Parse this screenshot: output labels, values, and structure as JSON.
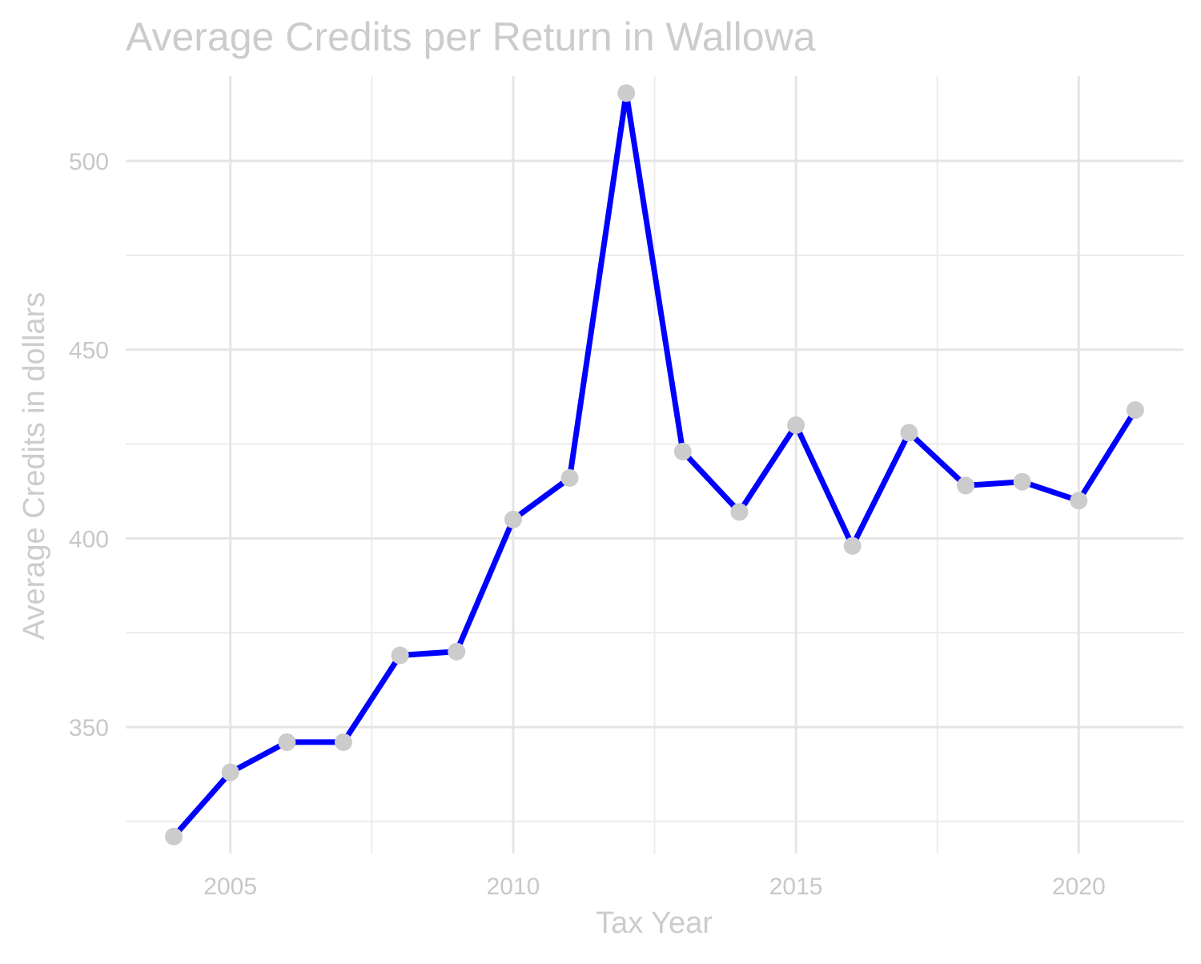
{
  "chart_data": {
    "type": "line",
    "title": "Average Credits per Return in Wallowa",
    "xlabel": "Tax Year",
    "ylabel": "Average Credits in dollars",
    "x": [
      2004,
      2005,
      2006,
      2007,
      2008,
      2009,
      2010,
      2011,
      2012,
      2013,
      2014,
      2015,
      2016,
      2017,
      2018,
      2019,
      2020,
      2021
    ],
    "series": [
      {
        "values": [
          321,
          338,
          346,
          346,
          369,
          370,
          405,
          416,
          518,
          423,
          407,
          430,
          398,
          428,
          414,
          415,
          410,
          434
        ]
      }
    ],
    "xlim": [
      2003.15,
      2021.85
    ],
    "ylim": [
      316.5,
      522.5
    ],
    "x_ticks": [
      2005,
      2010,
      2015,
      2020
    ],
    "x_tick_labels": [
      "2005",
      "2010",
      "2015",
      "2020"
    ],
    "x_minor_ticks": [
      2007.5,
      2012.5,
      2017.5
    ],
    "y_ticks": [
      350,
      400,
      450,
      500
    ],
    "y_tick_labels": [
      "350",
      "400",
      "450",
      "500"
    ],
    "y_minor_ticks": [
      325,
      375,
      425,
      475
    ],
    "grid": true,
    "legend": "none",
    "colors": {
      "line": "#0000ff",
      "points": "#cccccc",
      "text": "#cccccc",
      "grid": "#e5e5e5"
    }
  }
}
